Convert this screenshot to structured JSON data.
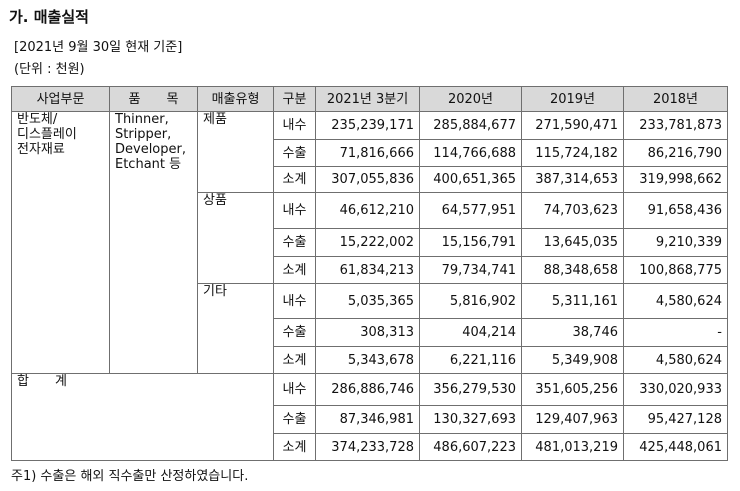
{
  "title": "가. 매출실적",
  "basis": "[2021년 9월 30일 현재 기준]",
  "unit": "(단위 : 천원)",
  "table": {
    "headers": [
      "사업부문",
      "품　　목",
      "매출유형",
      "구분",
      "2021년 3분기",
      "2020년",
      "2019년",
      "2018년"
    ],
    "segment": "반도체/\n디스플레이\n전자재료",
    "items": "Thinner,\nStripper,\nDeveloper,\nEtchant 등",
    "groups": [
      {
        "type": "제품",
        "rows": [
          {
            "kind": "내수",
            "values": [
              "235,239,171",
              "285,884,677",
              "271,590,471",
              "233,781,873"
            ]
          },
          {
            "kind": "수출",
            "values": [
              "71,816,666",
              "114,766,688",
              "115,724,182",
              "86,216,790"
            ]
          },
          {
            "kind": "소계",
            "values": [
              "307,055,836",
              "400,651,365",
              "387,314,653",
              "319,998,662"
            ]
          }
        ]
      },
      {
        "type": "상품",
        "rows": [
          {
            "kind": "내수",
            "values": [
              "46,612,210",
              "64,577,951",
              "74,703,623",
              "91,658,436"
            ]
          },
          {
            "kind": "수출",
            "values": [
              "15,222,002",
              "15,156,791",
              "13,645,035",
              "9,210,339"
            ]
          },
          {
            "kind": "소계",
            "values": [
              "61,834,213",
              "79,734,741",
              "88,348,658",
              "100,868,775"
            ]
          }
        ]
      },
      {
        "type": "기타",
        "rows": [
          {
            "kind": "내수",
            "values": [
              "5,035,365",
              "5,816,902",
              "5,311,161",
              "4,580,624"
            ]
          },
          {
            "kind": "수출",
            "values": [
              "308,313",
              "404,214",
              "38,746",
              "-"
            ]
          },
          {
            "kind": "소계",
            "values": [
              "5,343,678",
              "6,221,116",
              "5,349,908",
              "4,580,624"
            ]
          }
        ]
      }
    ],
    "total": {
      "label": "합　　계",
      "rows": [
        {
          "kind": "내수",
          "values": [
            "286,886,746",
            "356,279,530",
            "351,605,256",
            "330,020,933"
          ]
        },
        {
          "kind": "수출",
          "values": [
            "87,346,981",
            "130,327,693",
            "129,407,963",
            "95,427,128"
          ]
        },
        {
          "kind": "소계",
          "values": [
            "374,233,728",
            "486,607,223",
            "481,013,219",
            "425,448,061"
          ]
        }
      ]
    }
  },
  "note": "주1) 수출은 해외 직수출만 산정하였습니다."
}
